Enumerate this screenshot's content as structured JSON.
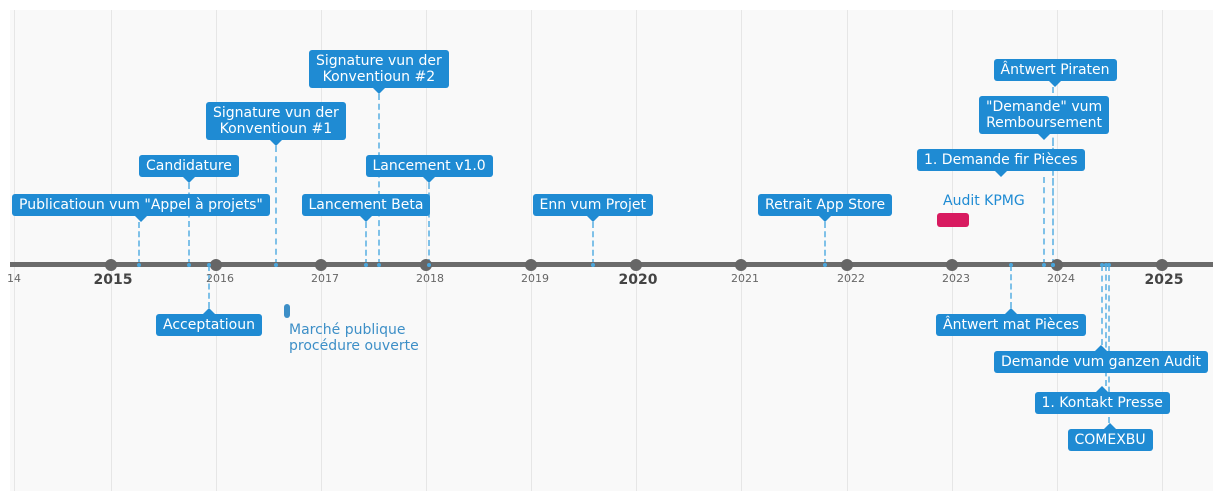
{
  "years": [
    {
      "label": "14",
      "major": false
    },
    {
      "label": "2015",
      "major": true
    },
    {
      "label": "2016",
      "major": false
    },
    {
      "label": "2017",
      "major": false
    },
    {
      "label": "2018",
      "major": false
    },
    {
      "label": "2019",
      "major": false
    },
    {
      "label": "2020",
      "major": true
    },
    {
      "label": "2021",
      "major": false
    },
    {
      "label": "2022",
      "major": false
    },
    {
      "label": "2023",
      "major": false
    },
    {
      "label": "2024",
      "major": false
    },
    {
      "label": "2025",
      "major": true
    }
  ],
  "events_above": [
    {
      "label": "Publicatioun vum \"Appel à projets\""
    },
    {
      "label": "Candidature"
    },
    {
      "label": "Signature vun der\nKonventioun #1"
    },
    {
      "label": "Lancement Beta"
    },
    {
      "label": "Signature vun der\nKonventioun #2"
    },
    {
      "label": "Lancement v1.0"
    },
    {
      "label": "Enn vum Projet"
    },
    {
      "label": "Retrait App Store"
    },
    {
      "label": "1. Demande fir Pièces"
    },
    {
      "label": "\"Demande\" vum\nRemboursement"
    },
    {
      "label": "Ântwert Piraten"
    }
  ],
  "events_below": [
    {
      "label": "Acceptatioun"
    },
    {
      "label": "Ântwert mat Pièces"
    },
    {
      "label": "Demande vum ganzen Audit"
    },
    {
      "label": "1. Kontakt Presse"
    },
    {
      "label": "COMEXBU"
    }
  ],
  "periods": [
    {
      "label": "Audit KPMG",
      "color": "#d81b60"
    },
    {
      "label": "Marché publique\nprocédure ouverte",
      "color": "#3d8fc7"
    }
  ],
  "colors": {
    "event_box": "#1f8bd3",
    "connector": "#7fc1e8",
    "axis": "#6b6b6b"
  }
}
